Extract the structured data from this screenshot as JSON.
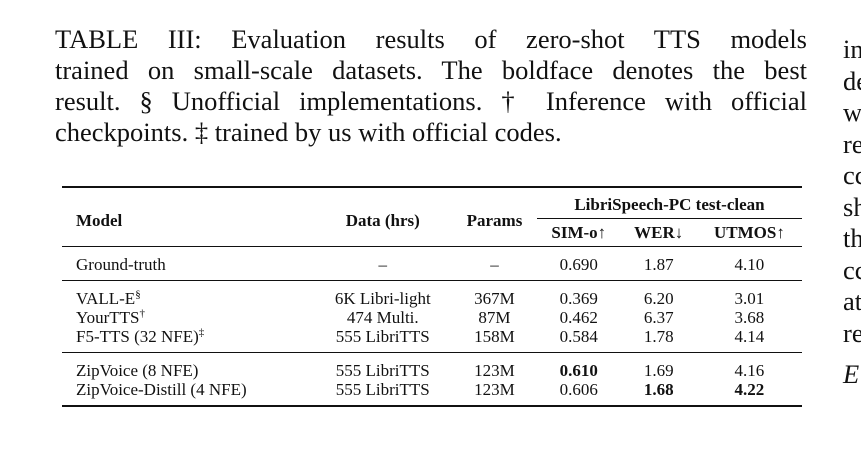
{
  "caption": {
    "lines": [
      "TABLE III: Evaluation results of zero-shot TTS models",
      "trained on small-scale datasets. The boldface denotes the best",
      "result. § Unofficial implementations. † Inference with official",
      "checkpoints. ‡ trained by us with official codes."
    ]
  },
  "side_text": [
    "in",
    "de",
    "w",
    "re",
    "cc",
    "sh",
    "th",
    "cc",
    "at",
    "re",
    "E"
  ],
  "table": {
    "headers": {
      "model": "Model",
      "data": "Data (hrs)",
      "params": "Params",
      "group": "LibriSpeech-PC test-clean",
      "sim": "SIM-o↑",
      "wer": "WER↓",
      "utmos": "UTMOS↑"
    },
    "rows": [
      {
        "model": "Ground-truth",
        "sup": "",
        "data": "–",
        "params": "–",
        "sim": "0.690",
        "wer": "1.87",
        "utmos": "4.10"
      },
      {
        "model": "VALL-E",
        "sup": "§",
        "data": "6K Libri-light",
        "params": "367M",
        "sim": "0.369",
        "wer": "6.20",
        "utmos": "3.01"
      },
      {
        "model": "YourTTS",
        "sup": "†",
        "data": "474 Multi.",
        "params": "87M",
        "sim": "0.462",
        "wer": "6.37",
        "utmos": "3.68"
      },
      {
        "model": "F5-TTS (32 NFE)",
        "sup": "‡",
        "data": "555 LibriTTS",
        "params": "158M",
        "sim": "0.584",
        "wer": "1.78",
        "utmos": "4.14"
      },
      {
        "model": "ZipVoice (8 NFE)",
        "sup": "",
        "data": "555 LibriTTS",
        "params": "123M",
        "sim": "0.610",
        "wer": "1.69",
        "utmos": "4.16"
      },
      {
        "model": "ZipVoice-Distill (4 NFE)",
        "sup": "",
        "data": "555 LibriTTS",
        "params": "123M",
        "sim": "0.606",
        "wer": "1.68",
        "utmos": "4.22"
      }
    ],
    "bold": [
      "4.sim",
      "5.wer",
      "5.utmos"
    ]
  }
}
